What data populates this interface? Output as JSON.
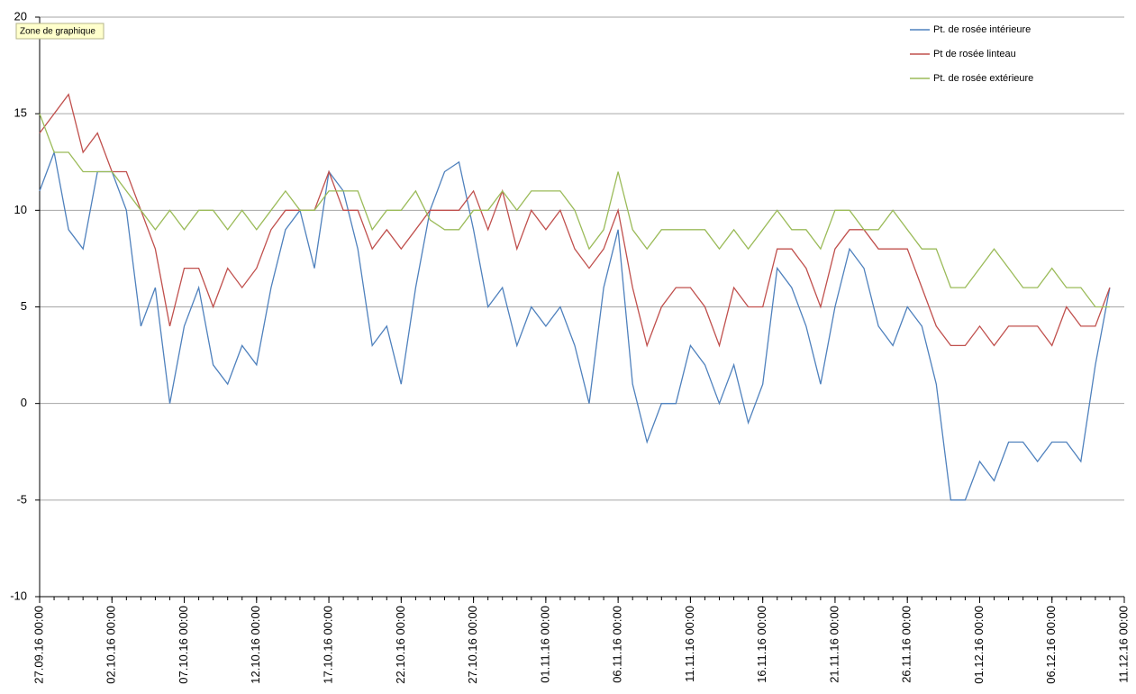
{
  "chart_data": {
    "type": "line",
    "tooltip": "Zone de graphique",
    "x": [
      "27.09.16 00:00",
      "28.09.16 00:00",
      "29.09.16 00:00",
      "30.09.16 00:00",
      "01.10.16 00:00",
      "02.10.16 00:00",
      "03.10.16 00:00",
      "04.10.16 00:00",
      "05.10.16 00:00",
      "06.10.16 00:00",
      "07.10.16 00:00",
      "08.10.16 00:00",
      "09.10.16 00:00",
      "10.10.16 00:00",
      "11.10.16 00:00",
      "12.10.16 00:00",
      "13.10.16 00:00",
      "14.10.16 00:00",
      "15.10.16 00:00",
      "16.10.16 00:00",
      "17.10.16 00:00",
      "18.10.16 00:00",
      "19.10.16 00:00",
      "20.10.16 00:00",
      "21.10.16 00:00",
      "22.10.16 00:00",
      "23.10.16 00:00",
      "24.10.16 00:00",
      "25.10.16 00:00",
      "26.10.16 00:00",
      "27.10.16 00:00",
      "28.10.16 00:00",
      "29.10.16 00:00",
      "30.10.16 00:00",
      "31.10.16 00:00",
      "01.11.16 00:00",
      "02.11.16 00:00",
      "03.11.16 00:00",
      "04.11.16 00:00",
      "05.11.16 00:00",
      "06.11.16 00:00",
      "07.11.16 00:00",
      "08.11.16 00:00",
      "09.11.16 00:00",
      "10.11.16 00:00",
      "11.11.16 00:00",
      "12.11.16 00:00",
      "13.11.16 00:00",
      "14.11.16 00:00",
      "15.11.16 00:00",
      "16.11.16 00:00",
      "17.11.16 00:00",
      "18.11.16 00:00",
      "19.11.16 00:00",
      "20.11.16 00:00",
      "21.11.16 00:00",
      "22.11.16 00:00",
      "23.11.16 00:00",
      "24.11.16 00:00",
      "25.11.16 00:00",
      "26.11.16 00:00",
      "27.11.16 00:00",
      "28.11.16 00:00",
      "29.11.16 00:00",
      "30.11.16 00:00",
      "01.12.16 00:00",
      "02.12.16 00:00",
      "03.12.16 00:00",
      "04.12.16 00:00",
      "05.12.16 00:00",
      "06.12.16 00:00",
      "07.12.16 00:00",
      "08.12.16 00:00",
      "09.12.16 00:00",
      "10.12.16 00:00"
    ],
    "series": [
      {
        "name": "Pt. de rosée intérieure",
        "color": "#4f81bd",
        "values": [
          11,
          13,
          9,
          8,
          12,
          12,
          10,
          4,
          6,
          0,
          4,
          6,
          2,
          1,
          3,
          2,
          6,
          9,
          10,
          7,
          12,
          11,
          8,
          3,
          4,
          1,
          6,
          10,
          12,
          12.5,
          9,
          5,
          6,
          3,
          5,
          4,
          5,
          3,
          0,
          6,
          9,
          1,
          -2,
          0,
          0,
          3,
          2,
          0,
          2,
          -1,
          1,
          7,
          6,
          4,
          1,
          5,
          8,
          7,
          4,
          3,
          5,
          4,
          1,
          -5,
          -5,
          -3,
          -4,
          -2,
          -2,
          -3,
          -2,
          -2,
          -3,
          2,
          6
        ]
      },
      {
        "name": "Pt de rosée linteau",
        "color": "#c0504d",
        "values": [
          14,
          15,
          16,
          13,
          14,
          12,
          12,
          10,
          8,
          4,
          7,
          7,
          5,
          7,
          6,
          7,
          9,
          10,
          10,
          10,
          12,
          10,
          10,
          8,
          9,
          8,
          9,
          10,
          10,
          10,
          11,
          9,
          11,
          8,
          10,
          9,
          10,
          8,
          7,
          8,
          10,
          6,
          3,
          5,
          6,
          6,
          5,
          3,
          6,
          5,
          5,
          8,
          8,
          7,
          5,
          8,
          9,
          9,
          8,
          8,
          8,
          6,
          4,
          3,
          3,
          4,
          3,
          4,
          4,
          4,
          3,
          5,
          4,
          4,
          6
        ]
      },
      {
        "name": "Pt. de rosée extérieure",
        "color": "#9bbb59",
        "values": [
          15,
          13,
          13,
          12,
          12,
          12,
          11,
          10,
          9,
          10,
          9,
          10,
          10,
          9,
          10,
          9,
          10,
          11,
          10,
          10,
          11,
          11,
          11,
          9,
          10,
          10,
          11,
          9.5,
          9,
          9,
          10,
          10,
          11,
          10,
          11,
          11,
          11,
          10,
          8,
          9,
          12,
          9,
          8,
          9,
          9,
          9,
          9,
          8,
          9,
          8,
          9,
          10,
          9,
          9,
          8,
          10,
          10,
          9,
          9,
          10,
          9,
          8,
          8,
          6,
          6,
          7,
          8,
          7,
          6,
          6,
          7,
          6,
          6,
          5,
          5
        ]
      }
    ],
    "xlim": [
      "27.09.16 00:00",
      "11.12.16 00:00"
    ],
    "xticks": [
      "27.09.16 00:00",
      "02.10.16 00:00",
      "07.10.16 00:00",
      "12.10.16 00:00",
      "17.10.16 00:00",
      "22.10.16 00:00",
      "27.10.16 00:00",
      "01.11.16 00:00",
      "06.11.16 00:00",
      "11.11.16 00:00",
      "16.11.16 00:00",
      "21.11.16 00:00",
      "26.11.16 00:00",
      "01.12.16 00:00",
      "06.12.16 00:00",
      "11.12.16 00:00"
    ],
    "ylim": [
      -10,
      20
    ],
    "yticks": [
      -10,
      -5,
      0,
      5,
      10,
      15,
      20
    ],
    "grid": true,
    "legend": "top-right"
  }
}
